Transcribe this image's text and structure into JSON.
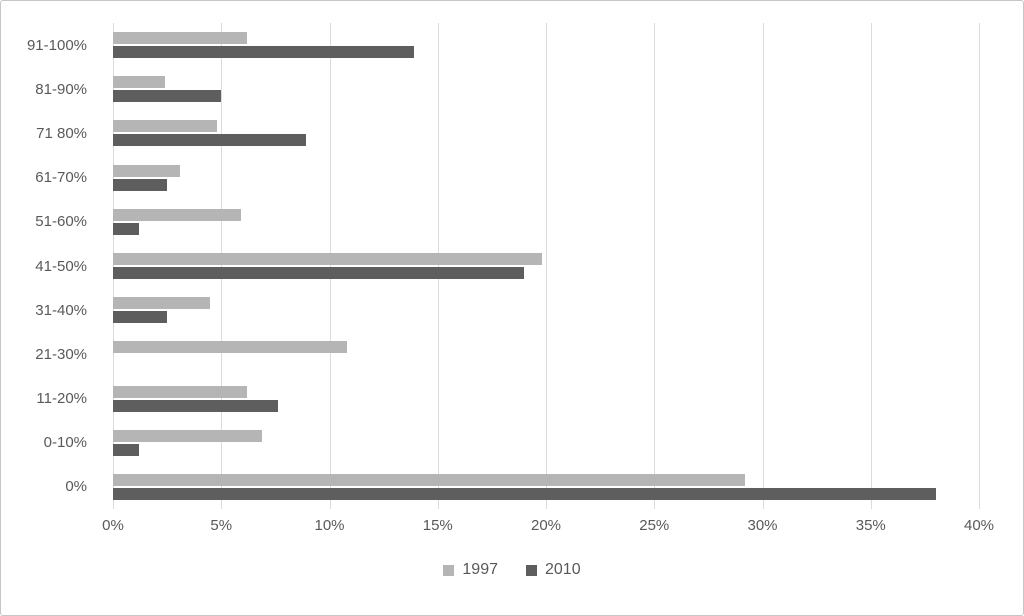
{
  "chart_data": {
    "type": "bar",
    "orientation": "horizontal",
    "title": "",
    "xlabel": "",
    "ylabel": "",
    "xlim": [
      0,
      40
    ],
    "x_tick_step": 5,
    "x_ticks": [
      "0%",
      "5%",
      "10%",
      "15%",
      "20%",
      "25%",
      "30%",
      "35%",
      "40%"
    ],
    "grid": "vertical-only",
    "legend_position": "bottom-center",
    "value_unit": "percent",
    "categories_top_to_bottom": [
      "91-100%",
      "81-90%",
      "71 80%",
      "61-70%",
      "51-60%",
      "41-50%",
      "31-40%",
      "21-30%",
      "11-20%",
      "0-10%",
      "0%"
    ],
    "series": [
      {
        "name": "1997",
        "color": "#b5b5b5",
        "values": [
          6.2,
          2.4,
          4.8,
          3.1,
          5.9,
          19.8,
          4.5,
          10.8,
          6.2,
          6.9,
          29.2
        ]
      },
      {
        "name": "2010",
        "color": "#5e5e5e",
        "values": [
          13.9,
          5.0,
          8.9,
          2.5,
          1.2,
          19.0,
          2.5,
          0,
          7.6,
          1.2,
          38.0
        ]
      }
    ],
    "colors": {
      "gridline": "#dbdbdb",
      "axis_text": "#595959",
      "frame_border": "#c6c6c6",
      "background": "#ffffff"
    }
  }
}
